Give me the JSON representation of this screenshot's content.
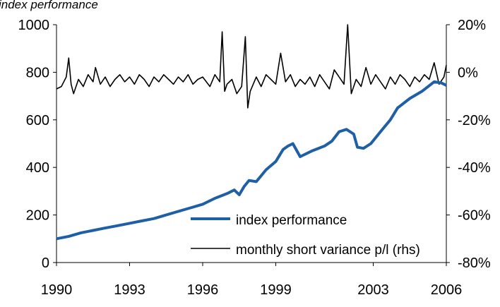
{
  "chart_data": {
    "type": "line",
    "title": "index performance",
    "x_ticks": [
      "1990",
      "1993",
      "1996",
      "1999",
      "2003",
      "2006"
    ],
    "xlim": [
      1990,
      2006
    ],
    "y_left": {
      "ticks": [
        "1000",
        "800",
        "600",
        "400",
        "200",
        "0"
      ],
      "lim": [
        0,
        1000
      ]
    },
    "y_right": {
      "ticks": [
        "20%",
        "0%",
        "-20%",
        "-40%",
        "-60%",
        "-80%"
      ],
      "lim": [
        -80,
        20
      ]
    },
    "grid": false,
    "legend_position": "bottom-right",
    "series": [
      {
        "name": "index performance",
        "axis": "left",
        "color": "#1f5fa6",
        "x": [
          1990.0,
          1990.5,
          1991.0,
          1991.5,
          1992.0,
          1992.5,
          1993.0,
          1993.5,
          1994.0,
          1994.5,
          1995.0,
          1995.5,
          1996.0,
          1996.5,
          1997.0,
          1997.3,
          1997.5,
          1997.7,
          1997.9,
          1998.2,
          1998.6,
          1999.0,
          1999.3,
          1999.5,
          1999.7,
          2000.0,
          2000.5,
          2001.0,
          2001.3,
          2001.6,
          2001.9,
          2002.2,
          2002.35,
          2002.6,
          2002.9,
          2003.3,
          2003.7,
          2004.0,
          2004.5,
          2005.0,
          2005.5,
          2005.8,
          2006.0
        ],
        "values": [
          100,
          110,
          125,
          135,
          145,
          155,
          165,
          175,
          185,
          200,
          215,
          230,
          245,
          270,
          290,
          305,
          285,
          320,
          345,
          340,
          390,
          425,
          475,
          490,
          500,
          445,
          470,
          490,
          510,
          550,
          560,
          540,
          485,
          480,
          500,
          550,
          600,
          650,
          690,
          720,
          760,
          755,
          745
        ]
      },
      {
        "name": "monthly short variance p/l (rhs)",
        "axis": "right",
        "color": "#000000",
        "x": [
          1990.0,
          1990.2,
          1990.4,
          1990.5,
          1990.6,
          1990.7,
          1990.9,
          1991.1,
          1991.3,
          1991.5,
          1991.6,
          1991.8,
          1992.0,
          1992.2,
          1992.4,
          1992.6,
          1992.8,
          1993.0,
          1993.2,
          1993.4,
          1993.6,
          1993.8,
          1994.0,
          1994.2,
          1994.4,
          1994.6,
          1994.8,
          1995.0,
          1995.2,
          1995.4,
          1995.6,
          1995.8,
          1996.0,
          1996.3,
          1996.5,
          1996.7,
          1996.8,
          1996.9,
          1997.0,
          1997.2,
          1997.4,
          1997.6,
          1997.75,
          1997.85,
          1997.95,
          1998.2,
          1998.4,
          1998.6,
          1998.8,
          1999.0,
          1999.2,
          1999.4,
          1999.6,
          1999.8,
          2000.0,
          2000.2,
          2000.4,
          2000.6,
          2000.8,
          2001.0,
          2001.2,
          2001.4,
          2001.6,
          2001.8,
          2001.95,
          2002.1,
          2002.3,
          2002.5,
          2002.7,
          2002.9,
          2003.1,
          2003.3,
          2003.5,
          2003.7,
          2003.9,
          2004.1,
          2004.3,
          2004.5,
          2004.7,
          2004.9,
          2005.1,
          2005.3,
          2005.5,
          2005.7,
          2005.9,
          2006.0
        ],
        "values": [
          -7,
          -6,
          -2,
          6,
          -5,
          -9,
          -3,
          -6,
          -1,
          -4,
          2,
          -5,
          -2,
          -6,
          -3,
          -1,
          -4,
          -2,
          -5,
          -1,
          -3,
          -6,
          -2,
          -4,
          -1,
          -3,
          -5,
          -2,
          -4,
          -1,
          -5,
          -3,
          -2,
          -6,
          -1,
          -4,
          17,
          -8,
          -5,
          -3,
          -9,
          -6,
          15,
          -15,
          -8,
          -2,
          -6,
          -1,
          -3,
          -5,
          8,
          -4,
          -1,
          -6,
          -3,
          -5,
          -2,
          -6,
          -1,
          -4,
          -7,
          1,
          -2,
          -5,
          20,
          -9,
          -3,
          -6,
          2,
          -5,
          -1,
          -4,
          -7,
          -2,
          -5,
          -1,
          -3,
          -6,
          -2,
          -4,
          -1,
          -3,
          4,
          -5,
          -2,
          3
        ]
      }
    ]
  }
}
